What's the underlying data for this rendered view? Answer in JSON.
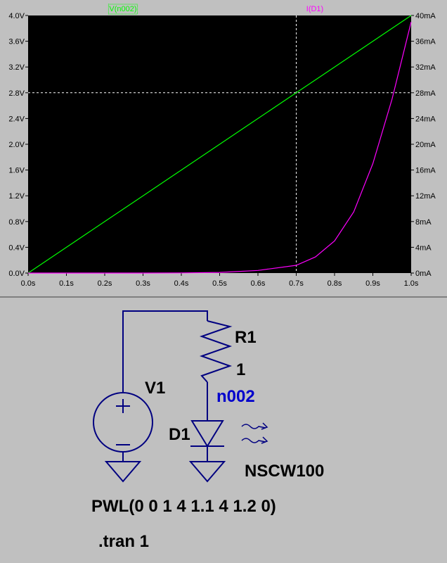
{
  "chart_data": {
    "type": "line",
    "x": [
      0,
      0.1,
      0.2,
      0.3,
      0.4,
      0.5,
      0.6,
      0.7,
      0.75,
      0.8,
      0.85,
      0.9,
      0.95,
      1.0
    ],
    "x_ticks": [
      "0.0s",
      "0.1s",
      "0.2s",
      "0.3s",
      "0.4s",
      "0.5s",
      "0.6s",
      "0.7s",
      "0.8s",
      "0.9s",
      "1.0s"
    ],
    "y_left_ticks": [
      "0.0V",
      "0.4V",
      "0.8V",
      "1.2V",
      "1.6V",
      "2.0V",
      "2.4V",
      "2.8V",
      "3.2V",
      "3.6V",
      "4.0V"
    ],
    "y_right_ticks": [
      "0mA",
      "4mA",
      "8mA",
      "12mA",
      "16mA",
      "20mA",
      "24mA",
      "28mA",
      "32mA",
      "36mA",
      "40mA"
    ],
    "xlim": [
      0,
      1.0
    ],
    "ylim_left": [
      0,
      4.0
    ],
    "ylim_right": [
      0,
      40
    ],
    "series": [
      {
        "name": "V(n002)",
        "axis": "left",
        "color": "#00ff00",
        "values": [
          0,
          0.4,
          0.8,
          1.2,
          1.6,
          2.0,
          2.4,
          2.8,
          3.0,
          3.2,
          3.4,
          3.6,
          3.8,
          4.0
        ]
      },
      {
        "name": "I(D1)",
        "axis": "right",
        "color": "#ff00ff",
        "values": [
          0,
          0,
          0,
          0,
          0.02,
          0.1,
          0.4,
          1.2,
          2.5,
          5.0,
          9.5,
          17.0,
          27.0,
          39.0
        ]
      }
    ],
    "cursor": {
      "x": 0.7,
      "y_left": 2.8
    },
    "grid": false,
    "background": "#000000"
  },
  "schematic": {
    "source_label": "V1",
    "resistor_label": "R1",
    "resistor_value": "1",
    "node_label": "n002",
    "diode_label": "D1",
    "diode_model": "NSCW100",
    "source_value": "PWL(0 0 1 4 1.1 4 1.2 0)",
    "directive": ".tran 1",
    "wire_color": "#000080",
    "node_color": "#0000cc"
  }
}
